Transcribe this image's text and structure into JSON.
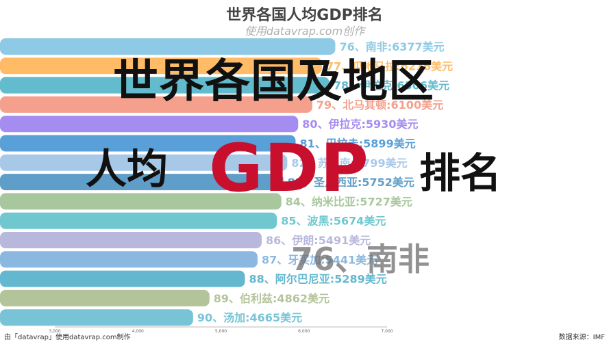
{
  "page": {
    "title": "世界各国人均GDP排名",
    "subtitle": "使用datavrap.com创作",
    "footer_left": "由「datavrap」使用datavrap.com制作",
    "footer_right": "数据来源：IMF"
  },
  "overlay": {
    "line1": "世界各国及地区",
    "line2_left": "人均",
    "line2_gdp": "GDP",
    "line2_right": "排名",
    "watermark": "76、南非"
  },
  "chart_data": {
    "type": "bar",
    "orientation": "horizontal",
    "categories": [
      "76、南非:6377美元",
      "77、瓜地马拉:6216美元",
      "78、伊拉克:6306美元",
      "79、北马其顿:6100美元",
      "80、伊拉克:5930美元",
      "81、巴拉圭:5899美元",
      "82、苏里南:5799美元",
      "83、圣卢西亚:5752美元",
      "84、纳米比亚:5727美元",
      "85、波黑:5674美元",
      "86、伊朗:5491美元",
      "87、牙买加:5441美元",
      "88、阿尔巴尼亚:5289美元",
      "89、伯利兹:4862美元",
      "90、汤加:4665美元"
    ],
    "values": [
      6377,
      6216,
      6306,
      6100,
      5930,
      5899,
      5799,
      5752,
      5727,
      5674,
      5491,
      5441,
      5289,
      4862,
      4665
    ],
    "colors": [
      "#8ecae6",
      "#ffbb66",
      "#63bccd",
      "#f4a08c",
      "#a58cf0",
      "#5aa0d8",
      "#a8c8e8",
      "#5f9ec8",
      "#a8c79c",
      "#6fc8d0",
      "#b8b8dc",
      "#8bb8e0",
      "#63b8d0",
      "#b4c49a",
      "#78c4d6"
    ],
    "xlim": [
      3000,
      7000
    ],
    "xticks": [
      "3,000",
      "4,000",
      "5,000",
      "6,000",
      "7,000"
    ],
    "grid": false
  }
}
